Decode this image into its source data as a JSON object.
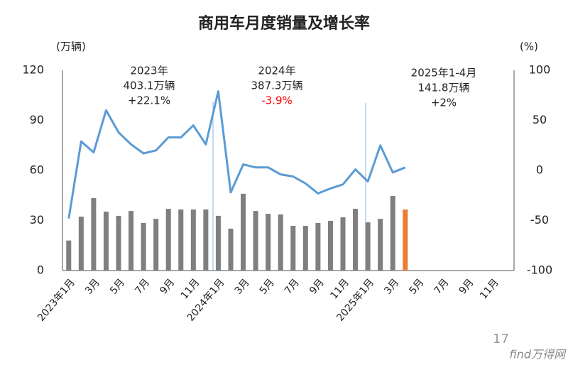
{
  "chart_data": {
    "type": "bar+line",
    "title": "商用车月度销量及增长率",
    "ylabel": "(万辆)",
    "y2label": "(%)",
    "categories": [
      "2023年1月",
      null,
      "3月",
      null,
      "5月",
      null,
      "7月",
      null,
      "9月",
      null,
      "11月",
      null,
      "2024年1月",
      null,
      "3月",
      null,
      "5月",
      null,
      "7月",
      null,
      "9月",
      null,
      "11月",
      null,
      "2025年1月",
      null,
      "3月",
      null,
      "5月",
      null,
      "7月",
      null,
      "9月",
      null,
      "11月",
      null
    ],
    "ylim": [
      0,
      120
    ],
    "yticks": [
      0,
      30,
      60,
      90,
      120
    ],
    "y2lim": [
      -100,
      100
    ],
    "y2ticks": [
      -100,
      -50,
      0,
      50,
      100
    ],
    "series": [
      {
        "type": "bar",
        "color": "#7f7f7f",
        "colors": [
          "#7f7f7f",
          "#7f7f7f",
          "#7f7f7f",
          "#7f7f7f",
          "#7f7f7f",
          "#7f7f7f",
          "#7f7f7f",
          "#7f7f7f",
          "#7f7f7f",
          "#7f7f7f",
          "#7f7f7f",
          "#7f7f7f",
          "#7f7f7f",
          "#7f7f7f",
          "#7f7f7f",
          "#7f7f7f",
          "#7f7f7f",
          "#7f7f7f",
          "#7f7f7f",
          "#7f7f7f",
          "#7f7f7f",
          "#7f7f7f",
          "#7f7f7f",
          "#7f7f7f",
          "#7f7f7f",
          "#7f7f7f",
          "#7f7f7f",
          "#ed7d31",
          null,
          null,
          null,
          null,
          null,
          null,
          null,
          null
        ],
        "values": [
          18,
          32.3,
          43.4,
          35.3,
          32.8,
          35.7,
          28.5,
          31,
          37,
          36.6,
          36.6,
          36.6,
          32.8,
          25.1,
          46,
          35.7,
          34,
          33.6,
          26.8,
          26.8,
          28.5,
          29.8,
          31.9,
          37,
          28.9,
          31,
          44.7,
          36.6,
          null,
          null,
          null,
          null,
          null,
          null,
          null,
          null
        ]
      },
      {
        "type": "line",
        "axis": "y2",
        "color": "#5b9bd5",
        "values": [
          -48,
          29,
          18,
          60,
          38,
          26,
          17,
          20,
          33,
          33,
          45,
          26,
          79,
          -22,
          6,
          3,
          3,
          -4,
          -6,
          -13,
          -23,
          -18,
          -14,
          1,
          -11,
          25,
          -2,
          3,
          null,
          null,
          null,
          null,
          null,
          null,
          null,
          null
        ]
      }
    ],
    "annotations": [
      {
        "lines": [
          {
            "text": "2023年",
            "color": "#222222"
          },
          {
            "text": "403.1万辆",
            "color": "#222222"
          },
          {
            "text": "+22.1%",
            "color": "#222222"
          }
        ]
      },
      {
        "lines": [
          {
            "text": "2024年",
            "color": "#222222"
          },
          {
            "text": "387.3万辆",
            "color": "#222222"
          },
          {
            "text": "-3.9%",
            "color": "#ff0000"
          }
        ]
      },
      {
        "lines": [
          {
            "text": "2025年1-4月",
            "color": "#222222"
          },
          {
            "text": "141.8万辆",
            "color": "#222222"
          },
          {
            "text": "+2%",
            "color": "#222222"
          }
        ]
      }
    ]
  },
  "page_number": "17",
  "footer_logo": "find万得网"
}
